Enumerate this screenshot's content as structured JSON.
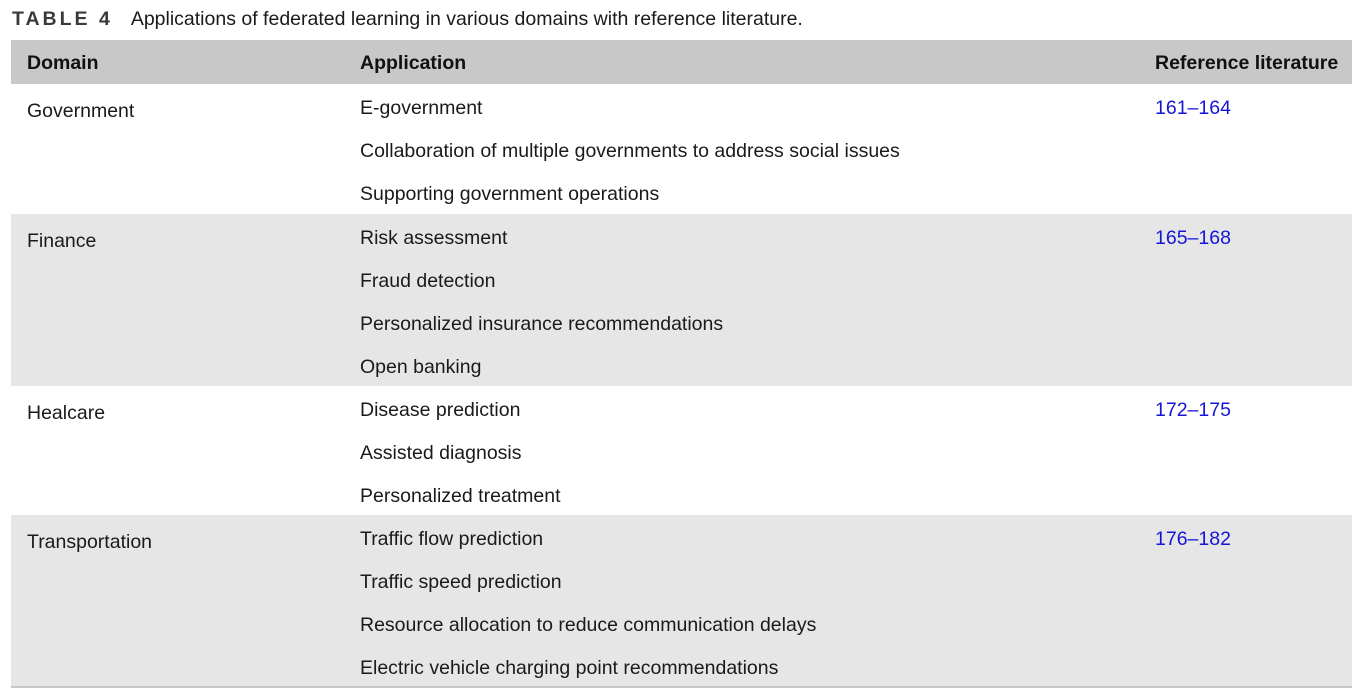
{
  "caption": {
    "label": "TABLE 4",
    "text": "Applications of federated learning in various domains with reference literature."
  },
  "headers": {
    "domain": "Domain",
    "application": "Application",
    "reference": "Reference literature"
  },
  "groups": [
    {
      "domain": "Government",
      "reference": "161–164",
      "applications": [
        "E-government",
        "Collaboration of multiple governments to address social issues",
        "Supporting government operations"
      ]
    },
    {
      "domain": "Finance",
      "reference": "165–168",
      "applications": [
        "Risk assessment",
        "Fraud detection",
        "Personalized insurance recommendations",
        "Open banking"
      ]
    },
    {
      "domain": "Healcare",
      "reference": "172–175",
      "applications": [
        "Disease prediction",
        "Assisted diagnosis",
        "Personalized treatment"
      ]
    },
    {
      "domain": "Transportation",
      "reference": "176–182",
      "applications": [
        "Traffic flow prediction",
        "Traffic speed prediction",
        "Resource allocation to reduce communication delays",
        "Electric vehicle charging point recommendations"
      ]
    }
  ],
  "colors": {
    "header_bg": "#c8c8c8",
    "shaded_row_bg": "#e6e6e6",
    "link": "#1515d6"
  }
}
